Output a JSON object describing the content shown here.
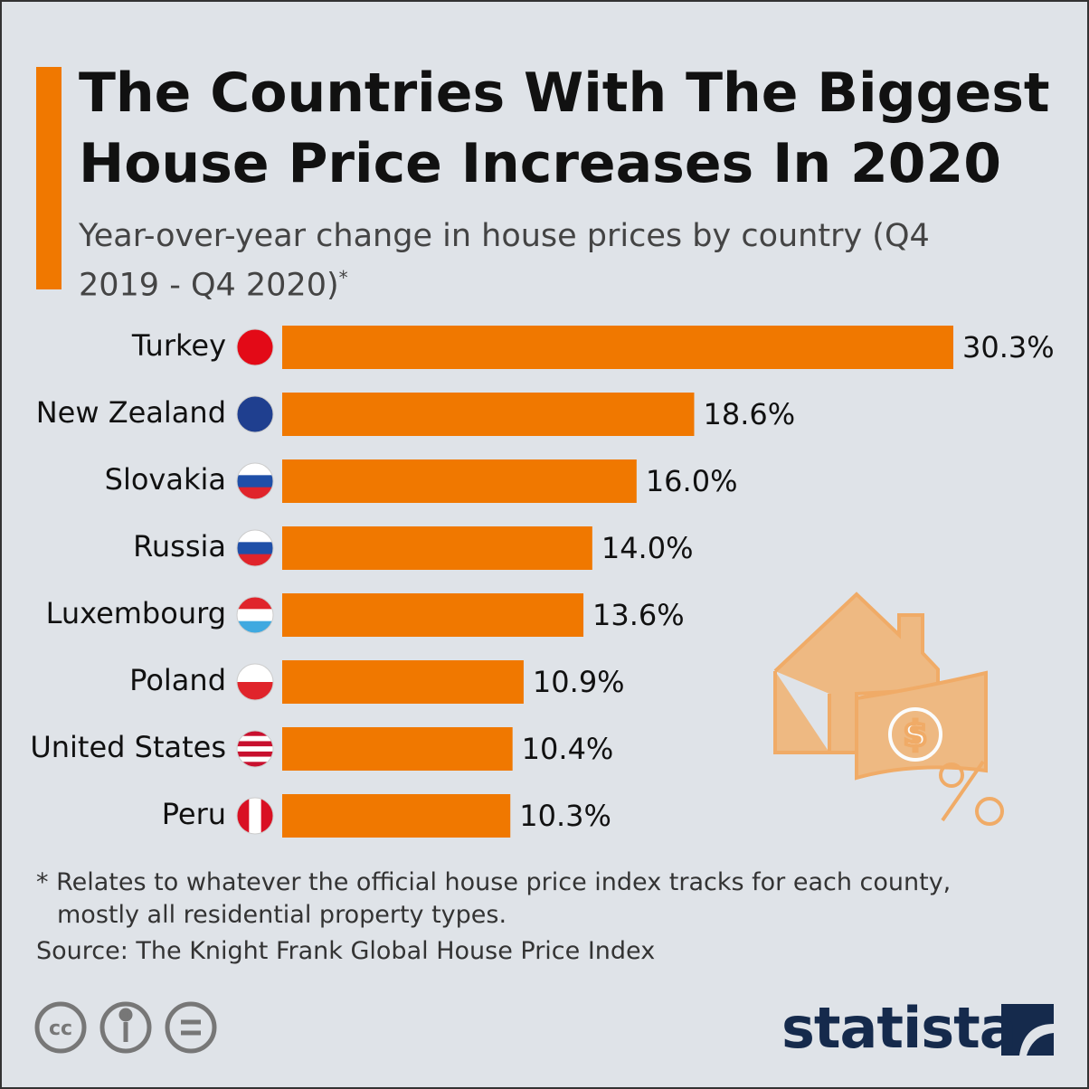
{
  "chart_data": {
    "type": "bar",
    "orientation": "horizontal",
    "title": "The Countries With The Biggest House Price Increases In 2020",
    "subtitle": "Year-over-year change in house prices by country (Q4 2019 - Q4 2020)",
    "subtitle_marker": "*",
    "categories": [
      "Turkey",
      "New Zealand",
      "Slovakia",
      "Russia",
      "Luxembourg",
      "Poland",
      "United States",
      "Peru"
    ],
    "values": [
      30.3,
      18.6,
      16.0,
      14.0,
      13.6,
      10.9,
      10.4,
      10.3
    ],
    "value_labels": [
      "30.3%",
      "18.6%",
      "16.0%",
      "14.0%",
      "13.6%",
      "10.9%",
      "10.4%",
      "10.3%"
    ],
    "color": "#f07800",
    "footnote": "* Relates to whatever the official house price index tracks for each county, mostly all residential property types.",
    "source": "Source: The Knight Frank Global House Price Index",
    "brand": "statista"
  }
}
